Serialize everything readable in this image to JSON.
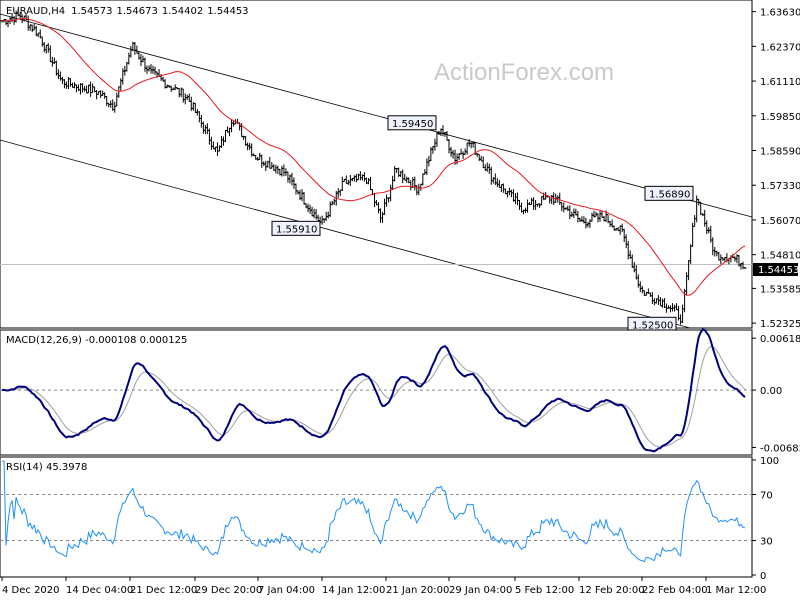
{
  "chart_data": [
    {
      "type": "candlestick",
      "title": "EURAUD,H4",
      "ohlc": [
        "1.54573",
        "1.54673",
        "1.54402",
        "1.54453"
      ],
      "watermark": "ActionForex.com",
      "price_axis_ticks": [
        "1.63630",
        "1.62370",
        "1.61110",
        "1.59850",
        "1.58590",
        "1.57330",
        "1.56070",
        "1.54810",
        "1.53585",
        "1.52325"
      ],
      "ylim": [
        1.5222,
        1.6398
      ],
      "current_price": "1.54453",
      "x_tick_labels": [
        "4 Dec 2020",
        "14 Dec 04:00",
        "21 Dec 12:00",
        "29 Dec 20:00",
        "7 Jan 04:00",
        "14 Jan 12:00",
        "21 Jan 20:00",
        "29 Jan 04:00",
        "5 Feb 12:00",
        "12 Feb 20:00",
        "22 Feb 04:00",
        "1 Mar 12:00"
      ],
      "annotations": [
        {
          "label": "1.59450",
          "value": 1.5945
        },
        {
          "label": "1.55910",
          "value": 1.5591
        },
        {
          "label": "1.56890",
          "value": 1.5689
        },
        {
          "label": "1.52500",
          "value": 1.525
        }
      ],
      "series": [
        {
          "kind": "price",
          "color": "#000000"
        },
        {
          "kind": "moving_average",
          "color": "#e8191e"
        }
      ],
      "channel": {
        "color": "#000000"
      }
    },
    {
      "type": "line",
      "title": "MACD(12,26,9) -0.000108 0.000125",
      "axis_ticks": [
        "0.006184",
        "0.00",
        "-0.006837"
      ],
      "ylim": [
        -0.0075,
        0.0068
      ],
      "zero_label": "0.00",
      "series": [
        {
          "kind": "macd",
          "color": "#00007f"
        },
        {
          "kind": "signal",
          "color": "#a0a0a0"
        }
      ]
    },
    {
      "type": "line",
      "title": "RSI(14) 45.3978",
      "axis_ticks": [
        "100",
        "70",
        "30",
        "0"
      ],
      "ylim": [
        0,
        100
      ],
      "levels": [
        70,
        30
      ],
      "series": [
        {
          "kind": "rsi",
          "color": "#1e90ff"
        }
      ]
    }
  ]
}
